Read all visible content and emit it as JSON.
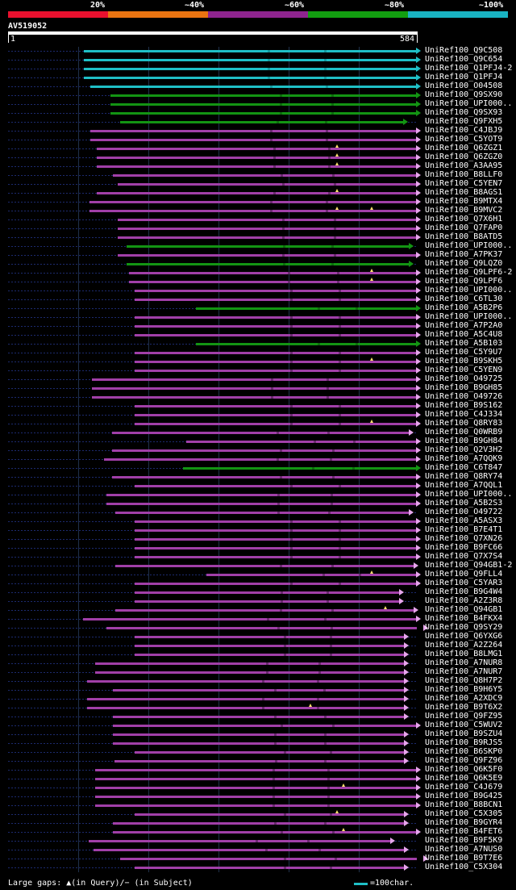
{
  "legend": {
    "segments": [
      {
        "color": "#e8102e"
      },
      {
        "color": "#ea7411"
      },
      {
        "color": "#8e248e"
      },
      {
        "color": "#129e10"
      },
      {
        "color": "#19b3c2"
      }
    ],
    "labels": [
      "20%",
      "~40%",
      "~60%",
      "~80%",
      "~100%"
    ]
  },
  "query": {
    "name": "AV519052",
    "start": "1",
    "end": "584",
    "length": 584
  },
  "colors": {
    "cyan": "#1fbfc6",
    "green": "#139413",
    "purple": "#a13fa8",
    "gap": "#ffe36e"
  },
  "hits": [
    {
      "name": "UniRef100_Q9C508",
      "c": "cyan",
      "s": 108,
      "e": 584
    },
    {
      "name": "UniRef100_Q9C654",
      "c": "cyan",
      "s": 108,
      "e": 584
    },
    {
      "name": "UniRef100_Q1PFJ4-2",
      "c": "cyan",
      "s": 108,
      "e": 584
    },
    {
      "name": "UniRef100_Q1PFJ4",
      "c": "cyan",
      "s": 108,
      "e": 584
    },
    {
      "name": "UniRef100_O04508",
      "c": "cyan",
      "s": 117,
      "e": 584
    },
    {
      "name": "UniRef100_Q9SX90",
      "c": "green",
      "s": 146,
      "e": 584
    },
    {
      "name": "UniRef100_UPI000..",
      "c": "green",
      "s": 146,
      "e": 584
    },
    {
      "name": "UniRef100_Q9SX93",
      "c": "green",
      "s": 146,
      "e": 584
    },
    {
      "name": "UniRef100_Q9FXH5",
      "c": "green",
      "s": 160,
      "e": 566
    },
    {
      "name": "UniRef100_C4JBJ9",
      "c": "purple",
      "s": 117,
      "e": 584
    },
    {
      "name": "UniRef100_C5YOT9",
      "c": "purple",
      "s": 117,
      "e": 584
    },
    {
      "name": "UniRef100_Q6ZGZ1",
      "c": "purple",
      "s": 127,
      "e": 584,
      "gaps": [
        469
      ]
    },
    {
      "name": "UniRef100_Q6ZGZ0",
      "c": "purple",
      "s": 127,
      "e": 584,
      "gaps": [
        469
      ]
    },
    {
      "name": "UniRef100_A3AA95",
      "c": "purple",
      "s": 127,
      "e": 584,
      "gaps": [
        469
      ]
    },
    {
      "name": "UniRef100_B8LLF0",
      "c": "purple",
      "s": 150,
      "e": 584
    },
    {
      "name": "UniRef100_C5YEN7",
      "c": "purple",
      "s": 156,
      "e": 584
    },
    {
      "name": "UniRef100_B8AGS1",
      "c": "purple",
      "s": 127,
      "e": 584,
      "gaps": [
        469
      ]
    },
    {
      "name": "UniRef100_B9MTX4",
      "c": "purple",
      "s": 116,
      "e": 584
    },
    {
      "name": "UniRef100_B9MVC2",
      "c": "purple",
      "s": 116,
      "e": 584,
      "gaps": [
        469,
        518
      ]
    },
    {
      "name": "UniRef100_Q7X6H1",
      "c": "purple",
      "s": 156,
      "e": 584
    },
    {
      "name": "UniRef100_Q7FAP0",
      "c": "purple",
      "s": 156,
      "e": 584
    },
    {
      "name": "UniRef100_B8ATD5",
      "c": "purple",
      "s": 156,
      "e": 584
    },
    {
      "name": "UniRef100_UPI000..",
      "c": "green",
      "s": 169,
      "e": 574
    },
    {
      "name": "UniRef100_A7PK37",
      "c": "purple",
      "s": 156,
      "e": 584
    },
    {
      "name": "UniRef100_Q9LQZ0",
      "c": "green",
      "s": 169,
      "e": 574
    },
    {
      "name": "UniRef100_Q9LPF6-2",
      "c": "purple",
      "s": 172,
      "e": 584,
      "gaps": [
        518
      ]
    },
    {
      "name": "UniRef100_Q9LPF6",
      "c": "purple",
      "s": 172,
      "e": 584,
      "gaps": [
        518
      ]
    },
    {
      "name": "UniRef100_UPI000..",
      "c": "purple",
      "s": 180,
      "e": 584
    },
    {
      "name": "UniRef100_C6TL30",
      "c": "purple",
      "s": 180,
      "e": 584
    },
    {
      "name": "UniRef100_A5B2P6",
      "c": "green",
      "s": 268,
      "e": 584
    },
    {
      "name": "UniRef100_UPI000..",
      "c": "purple",
      "s": 180,
      "e": 584
    },
    {
      "name": "UniRef100_A7P2A0",
      "c": "purple",
      "s": 180,
      "e": 584
    },
    {
      "name": "UniRef100_A5C4U8",
      "c": "purple",
      "s": 180,
      "e": 584
    },
    {
      "name": "UniRef100_A5B103",
      "c": "green",
      "s": 268,
      "e": 584
    },
    {
      "name": "UniRef100_C5Y9U7",
      "c": "purple",
      "s": 180,
      "e": 584
    },
    {
      "name": "UniRef100_B9SKH5",
      "c": "purple",
      "s": 180,
      "e": 584,
      "gaps": [
        518
      ]
    },
    {
      "name": "UniRef100_C5YEN9",
      "c": "purple",
      "s": 180,
      "e": 584
    },
    {
      "name": "UniRef100_O49725",
      "c": "purple",
      "s": 120,
      "e": 584
    },
    {
      "name": "UniRef100_B9GH85",
      "c": "purple",
      "s": 120,
      "e": 584
    },
    {
      "name": "UniRef100_O49726",
      "c": "purple",
      "s": 120,
      "e": 584
    },
    {
      "name": "UniRef100_B9S162",
      "c": "purple",
      "s": 180,
      "e": 584
    },
    {
      "name": "UniRef100_C4J334",
      "c": "purple",
      "s": 180,
      "e": 584
    },
    {
      "name": "UniRef100_Q8RY83",
      "c": "purple",
      "s": 180,
      "e": 584,
      "gaps": [
        518
      ]
    },
    {
      "name": "UniRef100_Q0WRB9",
      "c": "purple",
      "s": 148,
      "e": 574
    },
    {
      "name": "UniRef100_B9GH84",
      "c": "purple",
      "s": 254,
      "e": 584
    },
    {
      "name": "UniRef100_Q2V3H2",
      "c": "purple",
      "s": 148,
      "e": 584
    },
    {
      "name": "UniRef100_A7QQK9",
      "c": "purple",
      "s": 137,
      "e": 584
    },
    {
      "name": "UniRef100_C6T847",
      "c": "green",
      "s": 250,
      "e": 584
    },
    {
      "name": "UniRef100_Q8RY74",
      "c": "purple",
      "s": 148,
      "e": 584
    },
    {
      "name": "UniRef100_A7QQL1",
      "c": "purple",
      "s": 180,
      "e": 584
    },
    {
      "name": "UniRef100_UPI000..",
      "c": "purple",
      "s": 140,
      "e": 584
    },
    {
      "name": "UniRef100_A5B2S3",
      "c": "purple",
      "s": 140,
      "e": 584
    },
    {
      "name": "UniRef100_O49722",
      "c": "purple",
      "s": 153,
      "e": 574
    },
    {
      "name": "UniRef100_A5ASX3",
      "c": "purple",
      "s": 180,
      "e": 584
    },
    {
      "name": "UniRef100_B7E4T1",
      "c": "purple",
      "s": 180,
      "e": 584
    },
    {
      "name": "UniRef100_Q7XN26",
      "c": "purple",
      "s": 180,
      "e": 584
    },
    {
      "name": "UniRef100_B9FC66",
      "c": "purple",
      "s": 180,
      "e": 584
    },
    {
      "name": "UniRef100_Q7X7S4",
      "c": "purple",
      "s": 180,
      "e": 584
    },
    {
      "name": "UniRef100_Q94GB1-2",
      "c": "purple",
      "s": 153,
      "e": 580
    },
    {
      "name": "UniRef100_Q9FLL4",
      "c": "purple",
      "s": 283,
      "e": 584,
      "gaps": [
        518
      ]
    },
    {
      "name": "UniRef100_C5YAR3",
      "c": "purple",
      "s": 180,
      "e": 584
    },
    {
      "name": "UniRef100_B9G4W4",
      "c": "purple",
      "s": 180,
      "e": 560
    },
    {
      "name": "UniRef100_A2Z3R8",
      "c": "purple",
      "s": 180,
      "e": 560
    },
    {
      "name": "UniRef100_Q94GB1",
      "c": "purple",
      "s": 153,
      "e": 580,
      "gaps": [
        538
      ]
    },
    {
      "name": "UniRef100_B4FKX4",
      "c": "purple",
      "s": 107,
      "e": 584
    },
    {
      "name": "UniRef100_Q9SY29",
      "c": "purple",
      "s": 140,
      "e": 594
    },
    {
      "name": "UniRef100_Q6YXG6",
      "c": "purple",
      "s": 180,
      "e": 567
    },
    {
      "name": "UniRef100_A2Z264",
      "c": "purple",
      "s": 180,
      "e": 567
    },
    {
      "name": "UniRef100_B8LMG1",
      "c": "purple",
      "s": 180,
      "e": 567
    },
    {
      "name": "UniRef100_A7NUR8",
      "c": "purple",
      "s": 124,
      "e": 567
    },
    {
      "name": "UniRef100_A7NUR7",
      "c": "purple",
      "s": 124,
      "e": 567
    },
    {
      "name": "UniRef100_Q8H7P2",
      "c": "purple",
      "s": 113,
      "e": 567
    },
    {
      "name": "UniRef100_B9H6Y5",
      "c": "purple",
      "s": 149,
      "e": 567
    },
    {
      "name": "UniRef100_A2XDC9",
      "c": "purple",
      "s": 113,
      "e": 567
    },
    {
      "name": "UniRef100_B9T6X2",
      "c": "purple",
      "s": 113,
      "e": 567,
      "gaps": [
        431
      ]
    },
    {
      "name": "UniRef100_Q9FZ95",
      "c": "purple",
      "s": 150,
      "e": 567
    },
    {
      "name": "UniRef100_C5WUV2",
      "c": "purple",
      "s": 150,
      "e": 584
    },
    {
      "name": "UniRef100_B9SZU4",
      "c": "purple",
      "s": 150,
      "e": 567
    },
    {
      "name": "UniRef100_B9RJS5",
      "c": "purple",
      "s": 150,
      "e": 567
    },
    {
      "name": "UniRef100_B6SKP0",
      "c": "purple",
      "s": 180,
      "e": 567
    },
    {
      "name": "UniRef100_Q9FZ96",
      "c": "purple",
      "s": 152,
      "e": 567
    },
    {
      "name": "UniRef100_Q6K5F0",
      "c": "purple",
      "s": 124,
      "e": 584
    },
    {
      "name": "UniRef100_Q6K5E9",
      "c": "purple",
      "s": 124,
      "e": 584
    },
    {
      "name": "UniRef100_C4J679",
      "c": "purple",
      "s": 124,
      "e": 584,
      "gaps": [
        478
      ]
    },
    {
      "name": "UniRef100_B9G425",
      "c": "purple",
      "s": 124,
      "e": 584
    },
    {
      "name": "UniRef100_B8BCN1",
      "c": "purple",
      "s": 124,
      "e": 584
    },
    {
      "name": "UniRef100_C5X305",
      "c": "purple",
      "s": 180,
      "e": 567,
      "gaps": [
        469
      ]
    },
    {
      "name": "UniRef100_B9GYR4",
      "c": "purple",
      "s": 150,
      "e": 567
    },
    {
      "name": "UniRef100_B4FET6",
      "c": "purple",
      "s": 150,
      "e": 584,
      "gaps": [
        478
      ]
    },
    {
      "name": "UniRef100_B9F5K9",
      "c": "purple",
      "s": 115,
      "e": 547
    },
    {
      "name": "UniRef100_A7NUS0",
      "c": "purple",
      "s": 122,
      "e": 567
    },
    {
      "name": "UniRef100_B9T7E6",
      "c": "purple",
      "s": 160,
      "e": 594
    },
    {
      "name": "UniRef100_C5X304",
      "c": "purple",
      "s": 180,
      "e": 567
    }
  ],
  "footer": {
    "text": "Large gaps: ▲(in Query)/− (in Subject)",
    "scale_label": "=100char."
  }
}
